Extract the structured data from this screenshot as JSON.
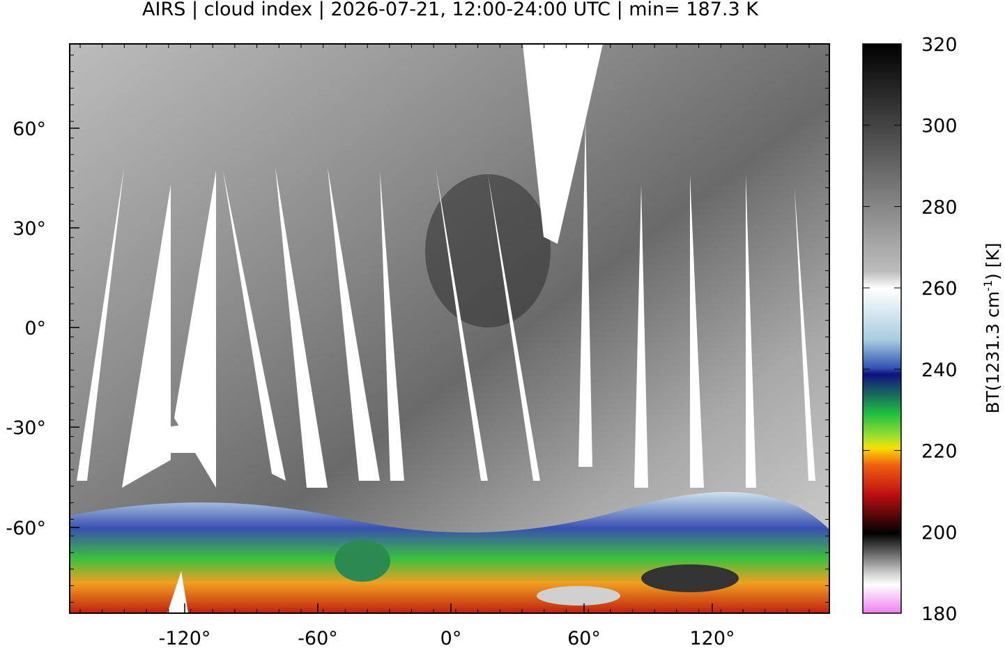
{
  "title": "AIRS | cloud index | 2026-07-21, 12:00-24:00 UTC | min= 187.3 K",
  "map": {
    "x_ticks": [
      "-120°",
      "-60°",
      "0°",
      "60°",
      "120°"
    ],
    "y_ticks": [
      "60°",
      "30°",
      "0°",
      "-30°",
      "-60°"
    ]
  },
  "colorbar": {
    "label_parts": [
      "BT(1231.3 cm",
      "-1",
      ") [K]"
    ],
    "ticks": [
      "320",
      "300",
      "280",
      "260",
      "240",
      "220",
      "200",
      "180"
    ]
  }
}
